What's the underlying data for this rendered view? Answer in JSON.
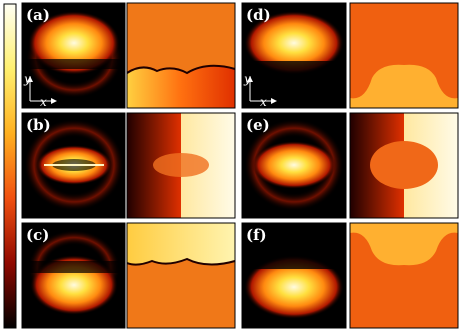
{
  "panels": [
    {
      "label": "(a)"
    },
    {
      "label": "(b)"
    },
    {
      "label": "(c)"
    },
    {
      "label": "(d)"
    },
    {
      "label": "(e)"
    },
    {
      "label": "(f)"
    }
  ],
  "axes": {
    "y": "y",
    "x": "x"
  }
}
